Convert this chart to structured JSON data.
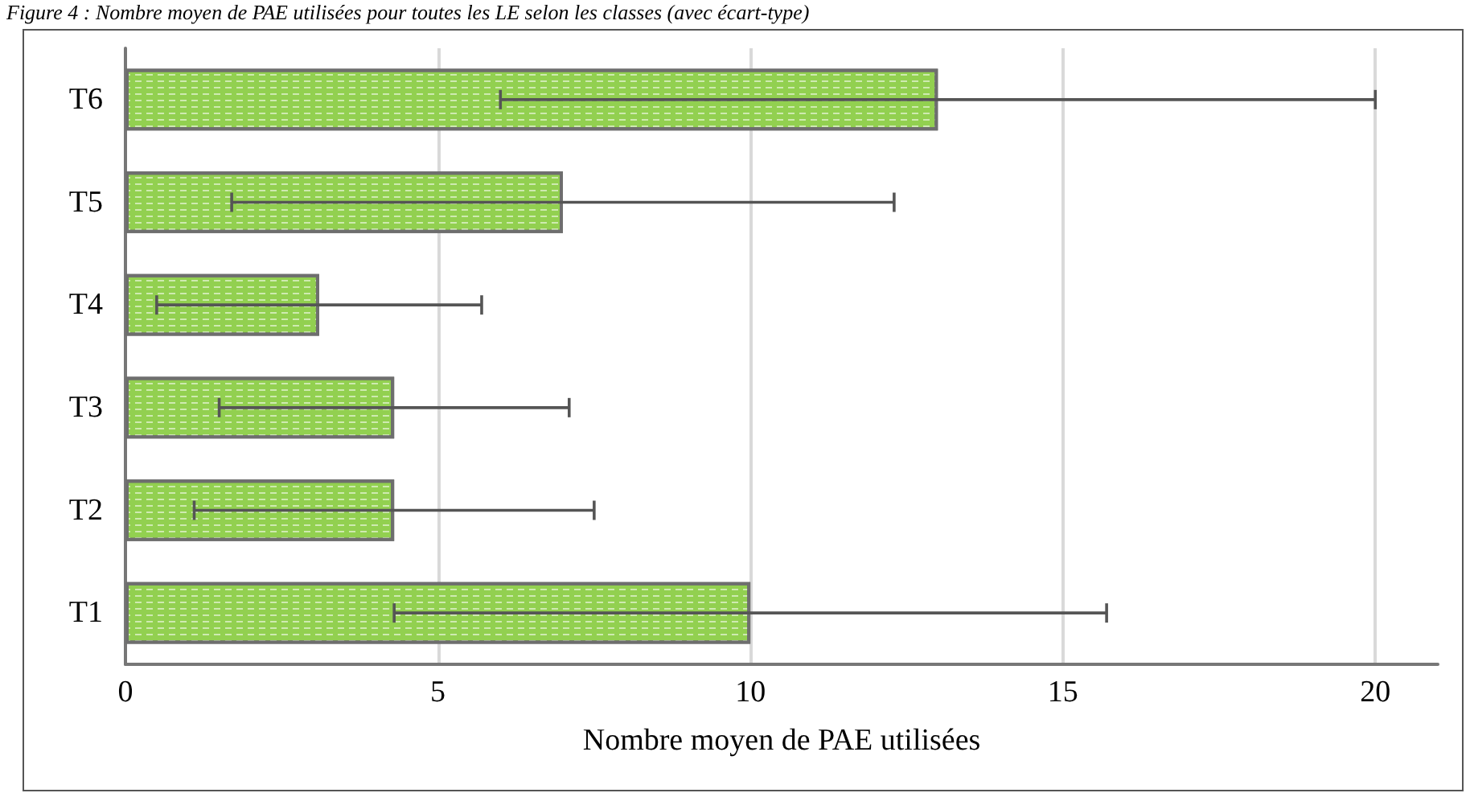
{
  "chart_data": {
    "type": "bar",
    "orientation": "horizontal",
    "title": "Figure 4 : Nombre moyen de PAE utilisées pour toutes les LE selon les classes (avec écart-type)",
    "xlabel": "Nombre moyen de PAE utilisées",
    "categories": [
      "T6",
      "T5",
      "T4",
      "T3",
      "T2",
      "T1"
    ],
    "values": [
      13.0,
      7.0,
      3.1,
      4.3,
      4.3,
      10.0
    ],
    "errors": [
      7.0,
      5.3,
      2.6,
      2.8,
      3.2,
      5.7
    ],
    "color": "#92d050",
    "xlim": [
      0,
      21
    ],
    "xticks": [
      0,
      5,
      10,
      15,
      20
    ],
    "grid": "x"
  }
}
